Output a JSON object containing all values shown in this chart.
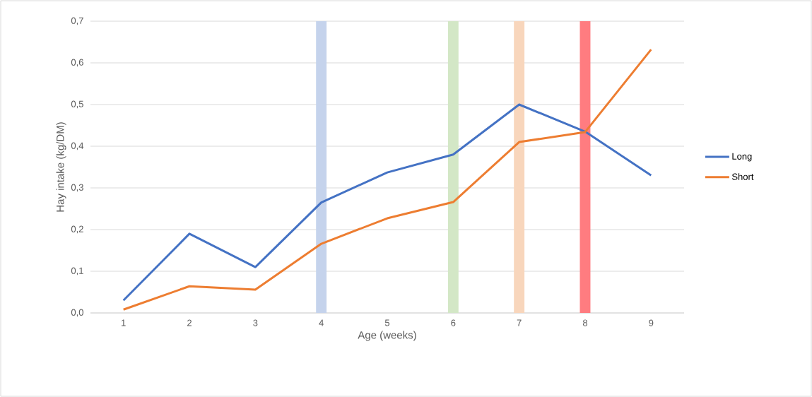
{
  "chart_data": {
    "type": "line",
    "xlabel": "Age (weeks)",
    "ylabel": "Hay intake (kg/DM)",
    "x": [
      1,
      2,
      3,
      4,
      5,
      6,
      7,
      8,
      9
    ],
    "series": [
      {
        "name": "Long",
        "color": "#4472c4",
        "values": [
          0.03,
          0.19,
          0.11,
          0.265,
          0.337,
          0.38,
          0.5,
          0.435,
          0.33
        ]
      },
      {
        "name": "Short",
        "color": "#ed7d31",
        "values": [
          0.008,
          0.064,
          0.056,
          0.166,
          0.227,
          0.266,
          0.41,
          0.434,
          0.632
        ]
      }
    ],
    "xlim": [
      0.5,
      9.5
    ],
    "xticks": [
      1,
      2,
      3,
      4,
      5,
      6,
      7,
      8,
      9
    ],
    "ylim": [
      0,
      0.7
    ],
    "yticks": [
      {
        "value": 0,
        "label": "0,0"
      },
      {
        "value": 0.1,
        "label": "0,1"
      },
      {
        "value": 0.2,
        "label": "0,2"
      },
      {
        "value": 0.3,
        "label": "0,3"
      },
      {
        "value": 0.4,
        "label": "0,4"
      },
      {
        "value": 0.5,
        "label": "0,5"
      },
      {
        "value": 0.6,
        "label": "0,6"
      },
      {
        "value": 0.7,
        "label": "0,7"
      }
    ],
    "bands": [
      {
        "axis": "x",
        "from": 3.92,
        "to": 4.08,
        "color": "#c5d3ec"
      },
      {
        "axis": "x",
        "from": 5.92,
        "to": 6.08,
        "color": "#d3e7c6"
      },
      {
        "axis": "x",
        "from": 6.92,
        "to": 7.08,
        "color": "#f8d6bc"
      },
      {
        "axis": "x",
        "from": 7.92,
        "to": 8.08,
        "color": "#ff7c80"
      }
    ],
    "grid": "y",
    "legend": "right",
    "marker": "none",
    "line_style": "solid"
  }
}
